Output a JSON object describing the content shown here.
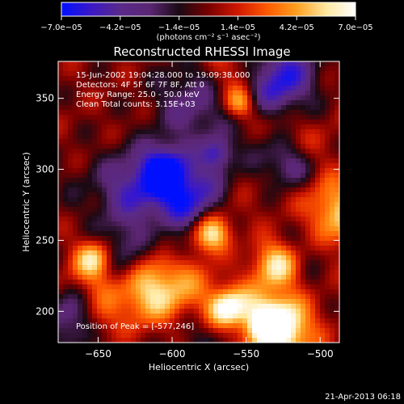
{
  "chart_data": {
    "type": "heatmap",
    "title": "Reconstructed RHESSI Image",
    "xlabel": "Heliocentric X (arcsec)",
    "ylabel": "Heliocentric Y (arcsec)",
    "xlim": [
      -677,
      -487
    ],
    "ylim": [
      178,
      376
    ],
    "x_ticks": [
      -650,
      -600,
      -550,
      -500
    ],
    "y_ticks": [
      200,
      250,
      300,
      350
    ],
    "x_tick_labels": [
      "−650",
      "−600",
      "−550",
      "−500"
    ],
    "y_tick_labels": [
      "200",
      "250",
      "300",
      "350"
    ],
    "colorbar": {
      "min": -7e-05,
      "max": 7e-05,
      "ticks": [
        -7e-05,
        -4.2e-05,
        -1.4e-05,
        1.4e-05,
        4.2e-05,
        7e-05
      ],
      "tick_labels": [
        "−7.0e−05",
        "−4.2e−05",
        "−1.4e−05",
        "1.4e−05",
        "4.2e−05",
        "7.0e−05"
      ],
      "unit_label": "(photons cm⁻² s⁻¹ asec⁻²)"
    },
    "annotations": [
      "15-Jun-2002 19:04:28.000 to 19:09:38.000",
      "Detectors: 4F 5F 6F 7F 8F, Att 0",
      "Energy Range: 25.0 - 50.0 keV",
      "Clean    Total counts: 3.15E+03"
    ],
    "peak_label": "Position of Peak = [-577,246]",
    "grid": false
  },
  "footer": {
    "timestamp": "21-Apr-2013 06:18"
  },
  "colors": {
    "background": "#000000",
    "text": "#ffffff",
    "colormap_stops": [
      "#0010ff",
      "#3a18c8",
      "#5a2a8a",
      "#5b2673",
      "#1a0a14",
      "#7a0000",
      "#d01800",
      "#ff5a00",
      "#ffa020",
      "#ffe8a0",
      "#ffffff"
    ]
  }
}
